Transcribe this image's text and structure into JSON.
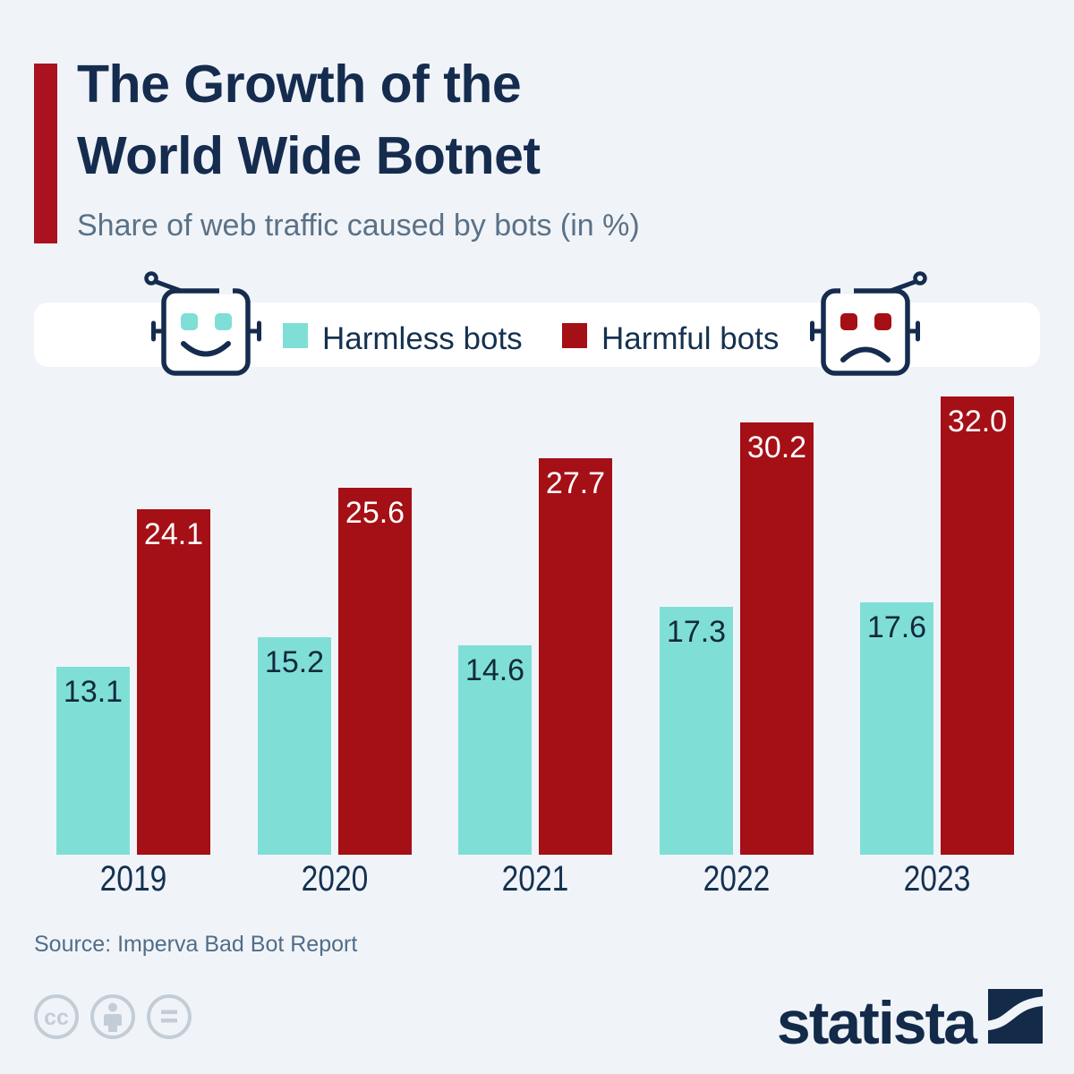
{
  "colors": {
    "background": "#f0f4f9",
    "navy": "#152c4e",
    "subtitle_gray": "#5b7186",
    "accent_red": "#ab1220",
    "harmless_teal": "#7fdfd6",
    "harmful_red": "#a50f16",
    "legend_band_white": "#ffffff",
    "license_icon_gray": "#c3cdd7",
    "source_gray": "#516d87"
  },
  "header": {
    "title_line1": "The Growth of the",
    "title_line2": "World Wide Botnet",
    "subtitle": "Share of web traffic caused by bots (in %)"
  },
  "legend": {
    "items": [
      {
        "label": "Harmless bots",
        "color": "#7fdfd6",
        "icon": "robot-happy-icon"
      },
      {
        "label": "Harmful bots",
        "color": "#a50f16",
        "icon": "robot-sad-icon"
      }
    ]
  },
  "chart_data": {
    "type": "bar",
    "title": "The Growth of the World Wide Botnet",
    "subtitle": "Share of web traffic caused by bots (in %)",
    "categories": [
      "2019",
      "2020",
      "2021",
      "2022",
      "2023"
    ],
    "series": [
      {
        "name": "Harmless bots",
        "key": "harmless",
        "color": "#7fdfd6",
        "label_color": "#12293f",
        "values": [
          13.1,
          15.2,
          14.6,
          17.3,
          17.6
        ]
      },
      {
        "name": "Harmful bots",
        "key": "harmful",
        "color": "#a50f16",
        "label_color": "#ffffff",
        "values": [
          24.1,
          25.6,
          27.7,
          30.2,
          32.0
        ]
      }
    ],
    "xlabel": "",
    "ylabel": "",
    "ylim": [
      0,
      32
    ],
    "grid": false,
    "legend_position": "top",
    "value_labels": true,
    "value_label_decimals": 1
  },
  "footer": {
    "source": "Source: Imperva Bad Bot Report",
    "brand": "statista",
    "license_icons": [
      "cc",
      "by",
      "nd"
    ]
  }
}
